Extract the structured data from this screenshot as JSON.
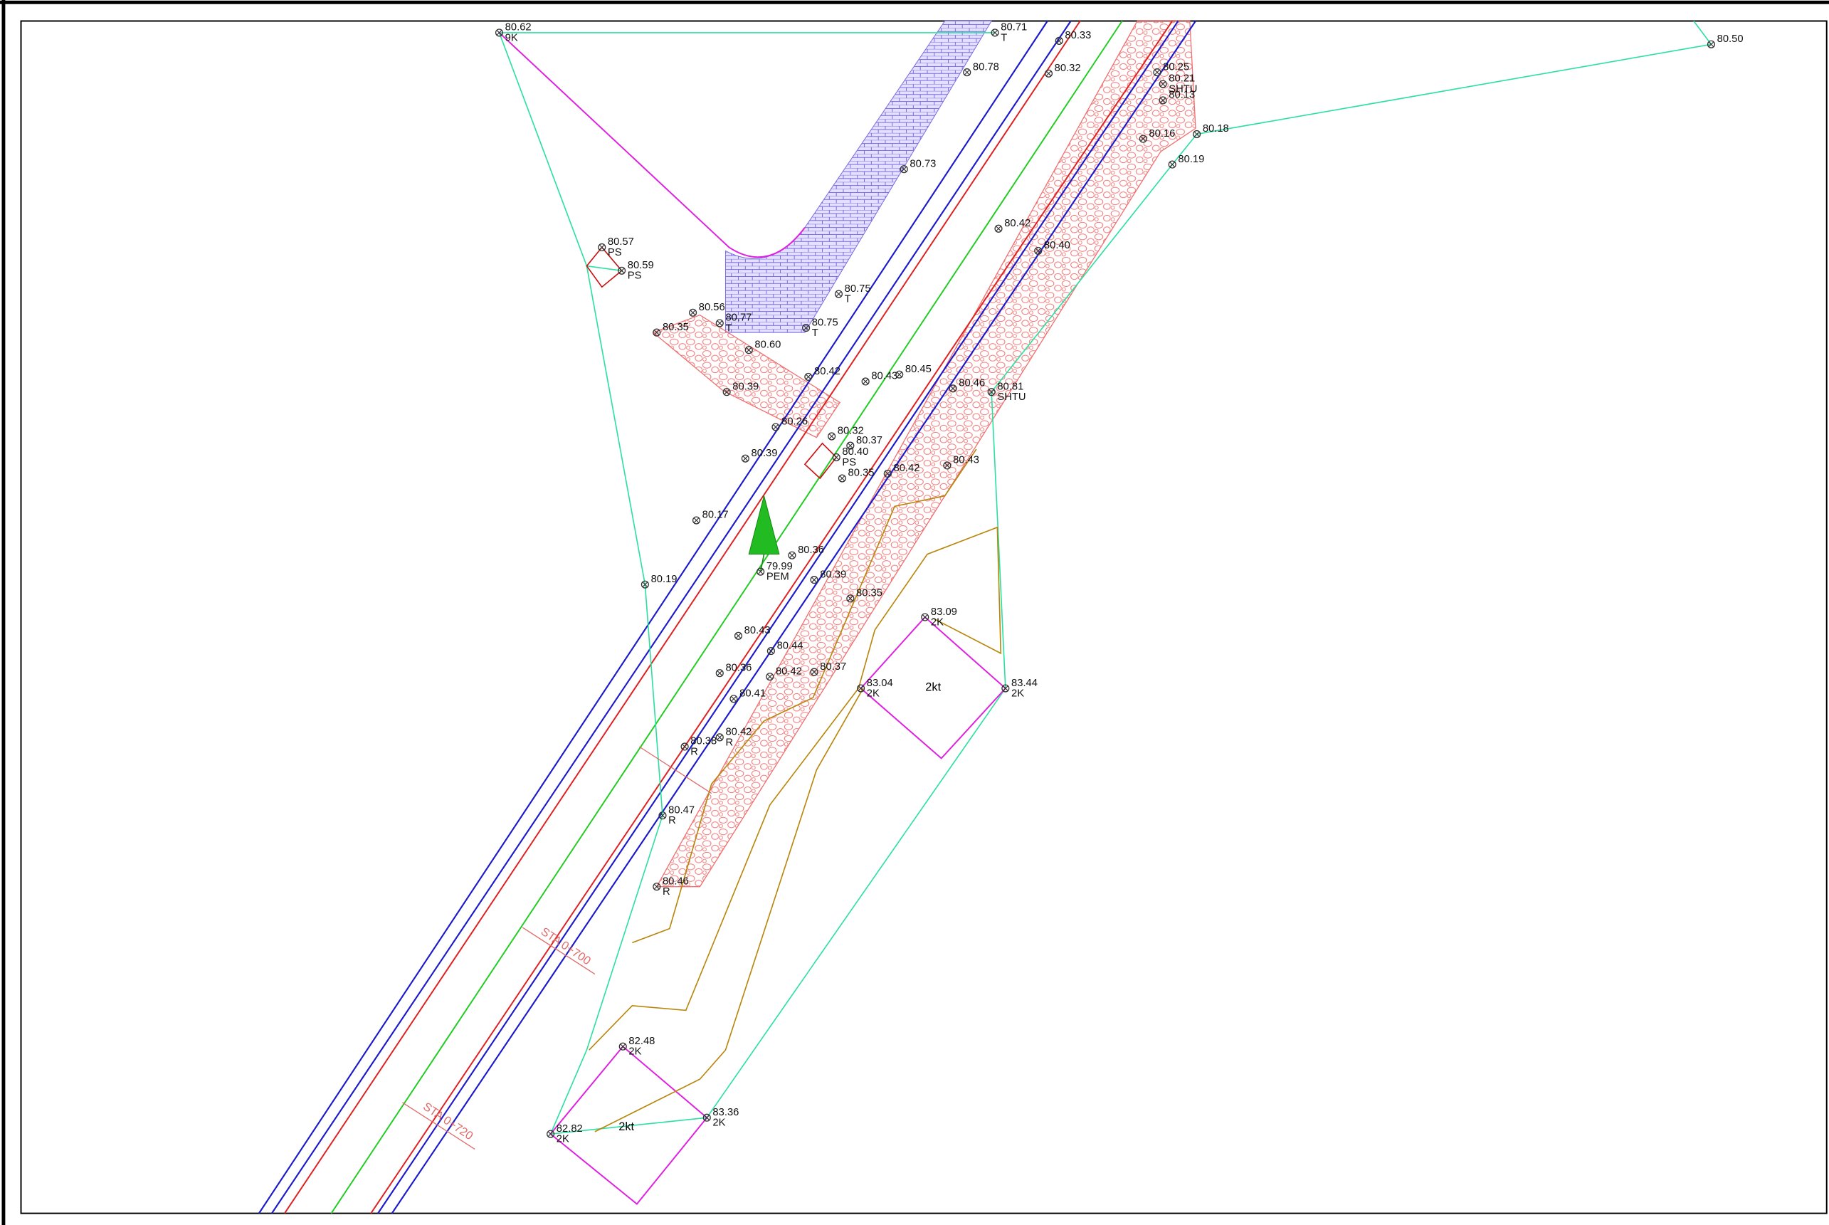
{
  "points": [
    {
      "elevation": "80.62",
      "code": "9K"
    },
    {
      "elevation": "80.71",
      "code": "T"
    },
    {
      "elevation": "80.33"
    },
    {
      "elevation": "80.78"
    },
    {
      "elevation": "80.32"
    },
    {
      "elevation": "80.50"
    },
    {
      "elevation": "80.25"
    },
    {
      "elevation": "80.21",
      "code": "SHTU"
    },
    {
      "elevation": "80.13"
    },
    {
      "elevation": "80.18"
    },
    {
      "elevation": "80.16"
    },
    {
      "elevation": "80.19"
    },
    {
      "elevation": "80.73"
    },
    {
      "elevation": "80.57",
      "code": "PS"
    },
    {
      "elevation": "80.59",
      "code": "PS"
    },
    {
      "elevation": "80.75",
      "code": "T"
    },
    {
      "elevation": "80.56"
    },
    {
      "elevation": "80.77",
      "code": "T"
    },
    {
      "elevation": "80.75",
      "code": "T"
    },
    {
      "elevation": "80.35"
    },
    {
      "elevation": "80.60"
    },
    {
      "elevation": "80.42"
    },
    {
      "elevation": "80.40"
    },
    {
      "elevation": "80.42"
    },
    {
      "elevation": "80.43"
    },
    {
      "elevation": "80.45"
    },
    {
      "elevation": "80.46"
    },
    {
      "elevation": "80.81",
      "code": "SHTU"
    },
    {
      "elevation": "80.39"
    },
    {
      "elevation": "80.26"
    },
    {
      "elevation": "80.32"
    },
    {
      "elevation": "80.37"
    },
    {
      "elevation": "80.40",
      "code": "PS"
    },
    {
      "elevation": "80.39"
    },
    {
      "elevation": "80.35"
    },
    {
      "elevation": "80.42"
    },
    {
      "elevation": "80.43"
    },
    {
      "elevation": "80.17"
    },
    {
      "elevation": "80.36"
    },
    {
      "elevation": "79.99",
      "code": "PEM"
    },
    {
      "elevation": "80.39"
    },
    {
      "elevation": "80.19"
    },
    {
      "elevation": "80.35"
    },
    {
      "elevation": "83.09",
      "code": "2K"
    },
    {
      "elevation": "80.43"
    },
    {
      "elevation": "80.44"
    },
    {
      "elevation": "80.36"
    },
    {
      "elevation": "80.42"
    },
    {
      "elevation": "80.37"
    },
    {
      "elevation": "83.04",
      "code": "2K"
    },
    {
      "elevation": "83.44",
      "code": "2K"
    },
    {
      "elevation": "80.41"
    },
    {
      "elevation": "80.42",
      "code": "R"
    },
    {
      "elevation": "80.38",
      "code": "R"
    },
    {
      "elevation": "80.47",
      "code": "R"
    },
    {
      "elevation": "80.46",
      "code": "R"
    },
    {
      "elevation": "82.48",
      "code": "2K"
    },
    {
      "elevation": "83.36",
      "code": "2K"
    },
    {
      "elevation": "82.82",
      "code": "2K"
    }
  ],
  "area_labels": [
    "2kt",
    "2kt"
  ],
  "stations": [
    "STA 0+700",
    "STA 0+720"
  ]
}
